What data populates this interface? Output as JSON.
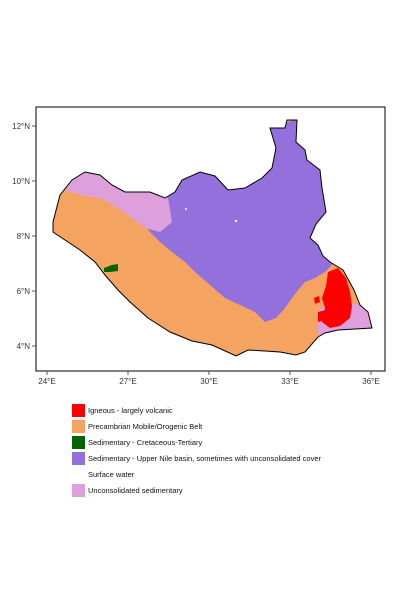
{
  "map": {
    "x_ticks": [
      "24°E",
      "27°E",
      "30°E",
      "33°E",
      "36°E"
    ],
    "y_ticks": [
      "12°N",
      "10°N",
      "8°N",
      "6°N",
      "4°N"
    ],
    "colors": {
      "igneous": "#ff0000",
      "precambrian": "#f4a460",
      "cretaceous": "#006400",
      "upper_nile": "#9370db",
      "surface_water": "#ffffff",
      "unconsolidated": "#dda0dd",
      "border": "#000000"
    }
  },
  "legend": {
    "items": [
      {
        "label": "Igneous - largely volcanic",
        "color": "#ff0000"
      },
      {
        "label": "Precambrian Mobile/Orogenic Belt",
        "color": "#f4a460"
      },
      {
        "label": "Sedimentary - Cretaceous-Tertiary",
        "color": "#006400"
      },
      {
        "label": "Sedimentary - Upper Nile basin, sometimes with unconsolidated cover",
        "color": "#9370db"
      },
      {
        "label": "Surface water",
        "color": "#ffffff"
      },
      {
        "label": "Unconsolidated sedimentary",
        "color": "#dda0dd"
      }
    ]
  }
}
